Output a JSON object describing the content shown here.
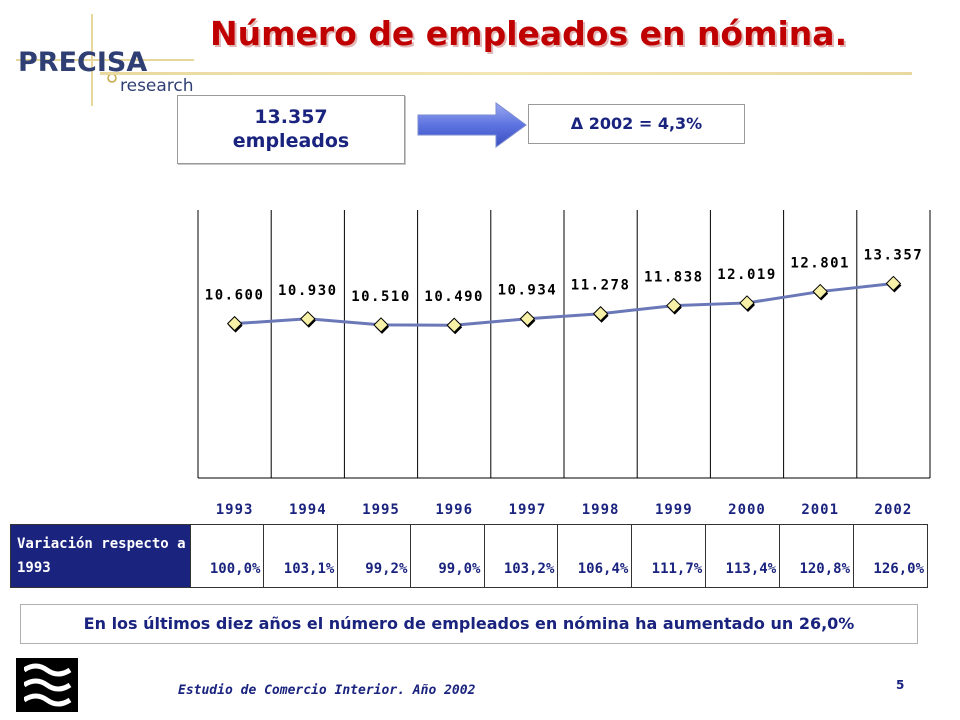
{
  "header": {
    "logo_word": "PRECISA",
    "logo_sub": "research",
    "title": "Número de empleados en nómina."
  },
  "highlight": {
    "employees_value": "13.357",
    "employees_unit": "empleados",
    "delta_symbol": "Δ",
    "delta_text": "2002 = 4,3%"
  },
  "colors": {
    "title": "#c00000",
    "accent": "#1a237e",
    "line": "#6b78b8",
    "marker_fill": "#f6f1a6"
  },
  "chart_data": {
    "type": "line",
    "categories": [
      "1993",
      "1994",
      "1995",
      "1996",
      "1997",
      "1998",
      "1999",
      "2000",
      "2001",
      "2002"
    ],
    "values": [
      10600,
      10930,
      10510,
      10490,
      10934,
      11278,
      11838,
      12019,
      12801,
      13357
    ],
    "value_labels": [
      "10.600",
      "10.930",
      "10.510",
      "10.490",
      "10.934",
      "11.278",
      "11.838",
      "12.019",
      "12.801",
      "13.357"
    ],
    "title": "",
    "xlabel": "",
    "ylabel": "",
    "ylim": [
      0,
      18400
    ],
    "grid": "vertical",
    "legend": "none"
  },
  "variation_table": {
    "header": "Variación respecto a 1993",
    "values": [
      "100,0%",
      "103,1%",
      "99,2%",
      "99,0%",
      "103,2%",
      "106,4%",
      "111,7%",
      "113,4%",
      "120,8%",
      "126,0%"
    ]
  },
  "summary": "En los últimos diez años el número de empleados en nómina ha aumentado un 26,0%",
  "footer": {
    "text": "Estudio de Comercio Interior. Año 2002",
    "page_number": "5"
  }
}
